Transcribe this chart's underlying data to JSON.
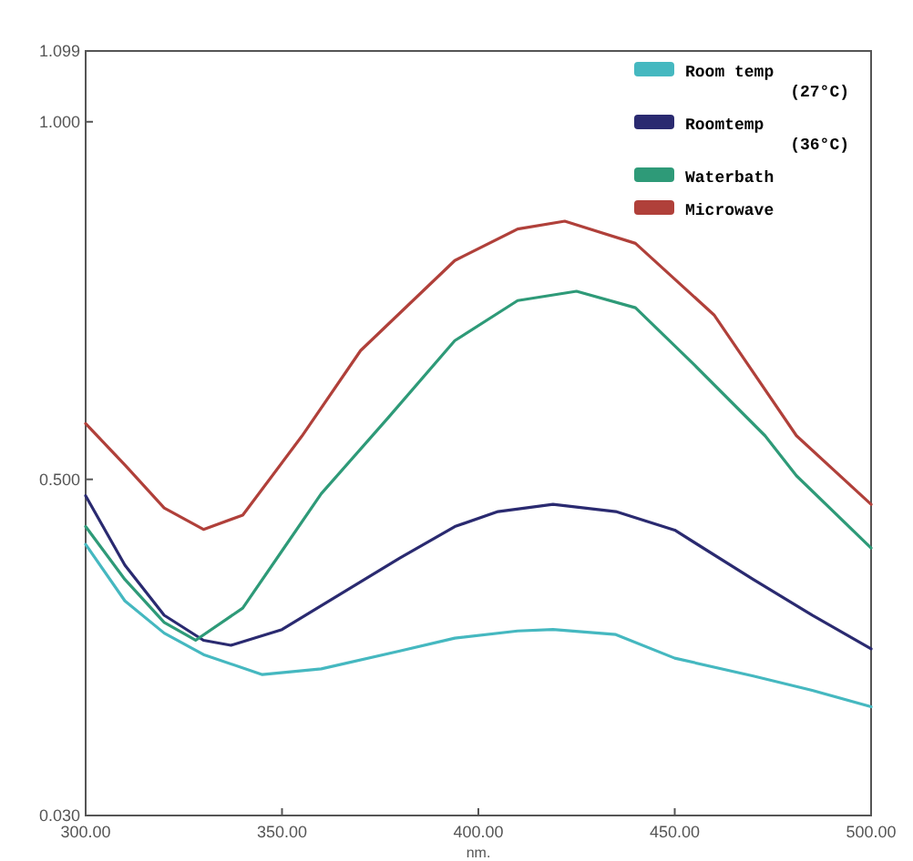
{
  "chart_data": {
    "type": "line",
    "xlabel": "nm.",
    "xlim": [
      300,
      500
    ],
    "ylim": [
      0.03,
      1.099
    ],
    "xticks": [
      {
        "value": 300,
        "label": "300.00"
      },
      {
        "value": 350,
        "label": "350.00"
      },
      {
        "value": 400,
        "label": "400.00"
      },
      {
        "value": 450,
        "label": "450.00"
      },
      {
        "value": 500,
        "label": "500.00"
      }
    ],
    "yticks": [
      {
        "value": 0.03,
        "label": "0.030"
      },
      {
        "value": 0.5,
        "label": "0.500"
      },
      {
        "value": 1,
        "label": "1.000"
      },
      {
        "value": 1.099,
        "label": "1.099"
      }
    ],
    "grid": false,
    "legend": "top right",
    "marker": "none",
    "line_style": "solid",
    "series": [
      {
        "name": "Room temp (27°C)",
        "color": "#45b8c0",
        "x": [
          300,
          310,
          320,
          330,
          345,
          360,
          380,
          394,
          410,
          419,
          435,
          450,
          470,
          485,
          500
        ],
        "values": [
          0.409,
          0.33,
          0.285,
          0.255,
          0.227,
          0.235,
          0.26,
          0.278,
          0.288,
          0.29,
          0.283,
          0.25,
          0.225,
          0.205,
          0.182
        ]
      },
      {
        "name": "Roomtemp (36°C)",
        "color": "#2a2a70",
        "x": [
          300,
          310,
          320,
          330,
          337,
          350,
          365,
          380,
          394,
          405,
          419,
          435,
          450,
          470,
          485,
          500
        ],
        "values": [
          0.477,
          0.38,
          0.31,
          0.275,
          0.268,
          0.29,
          0.34,
          0.39,
          0.434,
          0.455,
          0.465,
          0.455,
          0.429,
          0.36,
          0.31,
          0.263
        ]
      },
      {
        "name": "Waterbath",
        "color": "#2e9a78",
        "x": [
          300,
          310,
          320,
          328,
          340,
          350,
          360,
          377,
          394,
          410,
          425,
          440,
          455,
          473,
          481,
          500
        ],
        "values": [
          0.434,
          0.36,
          0.3,
          0.275,
          0.32,
          0.4,
          0.48,
          0.586,
          0.694,
          0.75,
          0.763,
          0.74,
          0.66,
          0.561,
          0.505,
          0.404
        ]
      },
      {
        "name": "Microwave",
        "color": "#b0403a",
        "x": [
          300,
          310,
          320,
          330,
          340,
          355,
          370,
          394,
          410,
          422,
          440,
          460,
          481,
          500
        ],
        "values": [
          0.578,
          0.52,
          0.46,
          0.43,
          0.45,
          0.56,
          0.68,
          0.806,
          0.85,
          0.861,
          0.83,
          0.73,
          0.561,
          0.465
        ]
      }
    ]
  }
}
